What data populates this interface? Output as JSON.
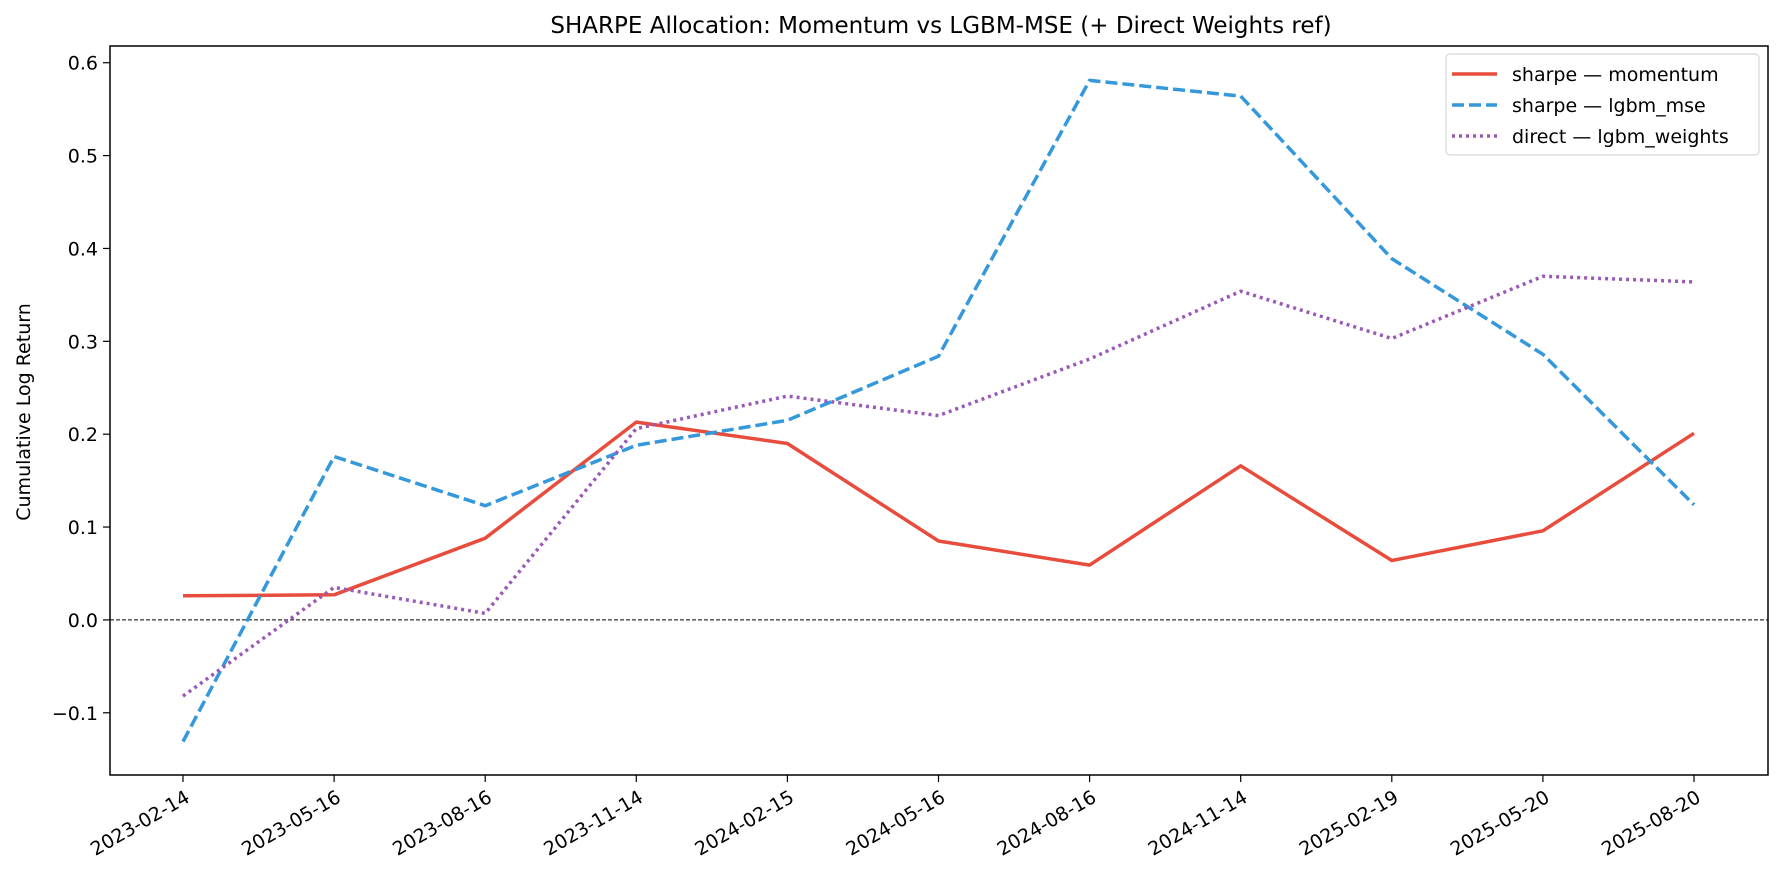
{
  "chart_data": {
    "type": "line",
    "title": "SHARPE Allocation: Momentum vs LGBM-MSE (+ Direct Weights ref)",
    "xlabel": "",
    "ylabel": "Cumulative Log Return",
    "x": [
      "2023-02-14",
      "2023-05-16",
      "2023-08-16",
      "2023-11-14",
      "2024-02-15",
      "2024-05-16",
      "2024-08-16",
      "2024-11-14",
      "2025-02-19",
      "2025-05-20",
      "2025-08-20"
    ],
    "ylim": [
      -0.167,
      0.618
    ],
    "yticks": [
      -0.1,
      0.0,
      0.1,
      0.2,
      0.3,
      0.4,
      0.5,
      0.6
    ],
    "ytick_labels": [
      "−0.1",
      "0.0",
      "0.1",
      "0.2",
      "0.3",
      "0.4",
      "0.5",
      "0.6"
    ],
    "grid": false,
    "zero_line": true,
    "legend_position": "top-right",
    "series": [
      {
        "name": "sharpe — momentum",
        "color": "#e74c3c",
        "style": "solid",
        "values": [
          0.026,
          0.027,
          0.088,
          0.213,
          0.19,
          0.085,
          0.059,
          0.166,
          0.064,
          0.096,
          0.201
        ]
      },
      {
        "name": "sharpe — lgbm_mse",
        "color": "#3498db",
        "style": "dashed",
        "values": [
          -0.131,
          0.176,
          0.123,
          0.188,
          0.215,
          0.284,
          0.581,
          0.564,
          0.389,
          0.286,
          0.124
        ]
      },
      {
        "name": "direct — lgbm_weights",
        "color": "#9b59b6",
        "style": "dotted",
        "values": [
          -0.082,
          0.035,
          0.007,
          0.206,
          0.241,
          0.22,
          0.281,
          0.354,
          0.303,
          0.37,
          0.364
        ]
      }
    ]
  }
}
